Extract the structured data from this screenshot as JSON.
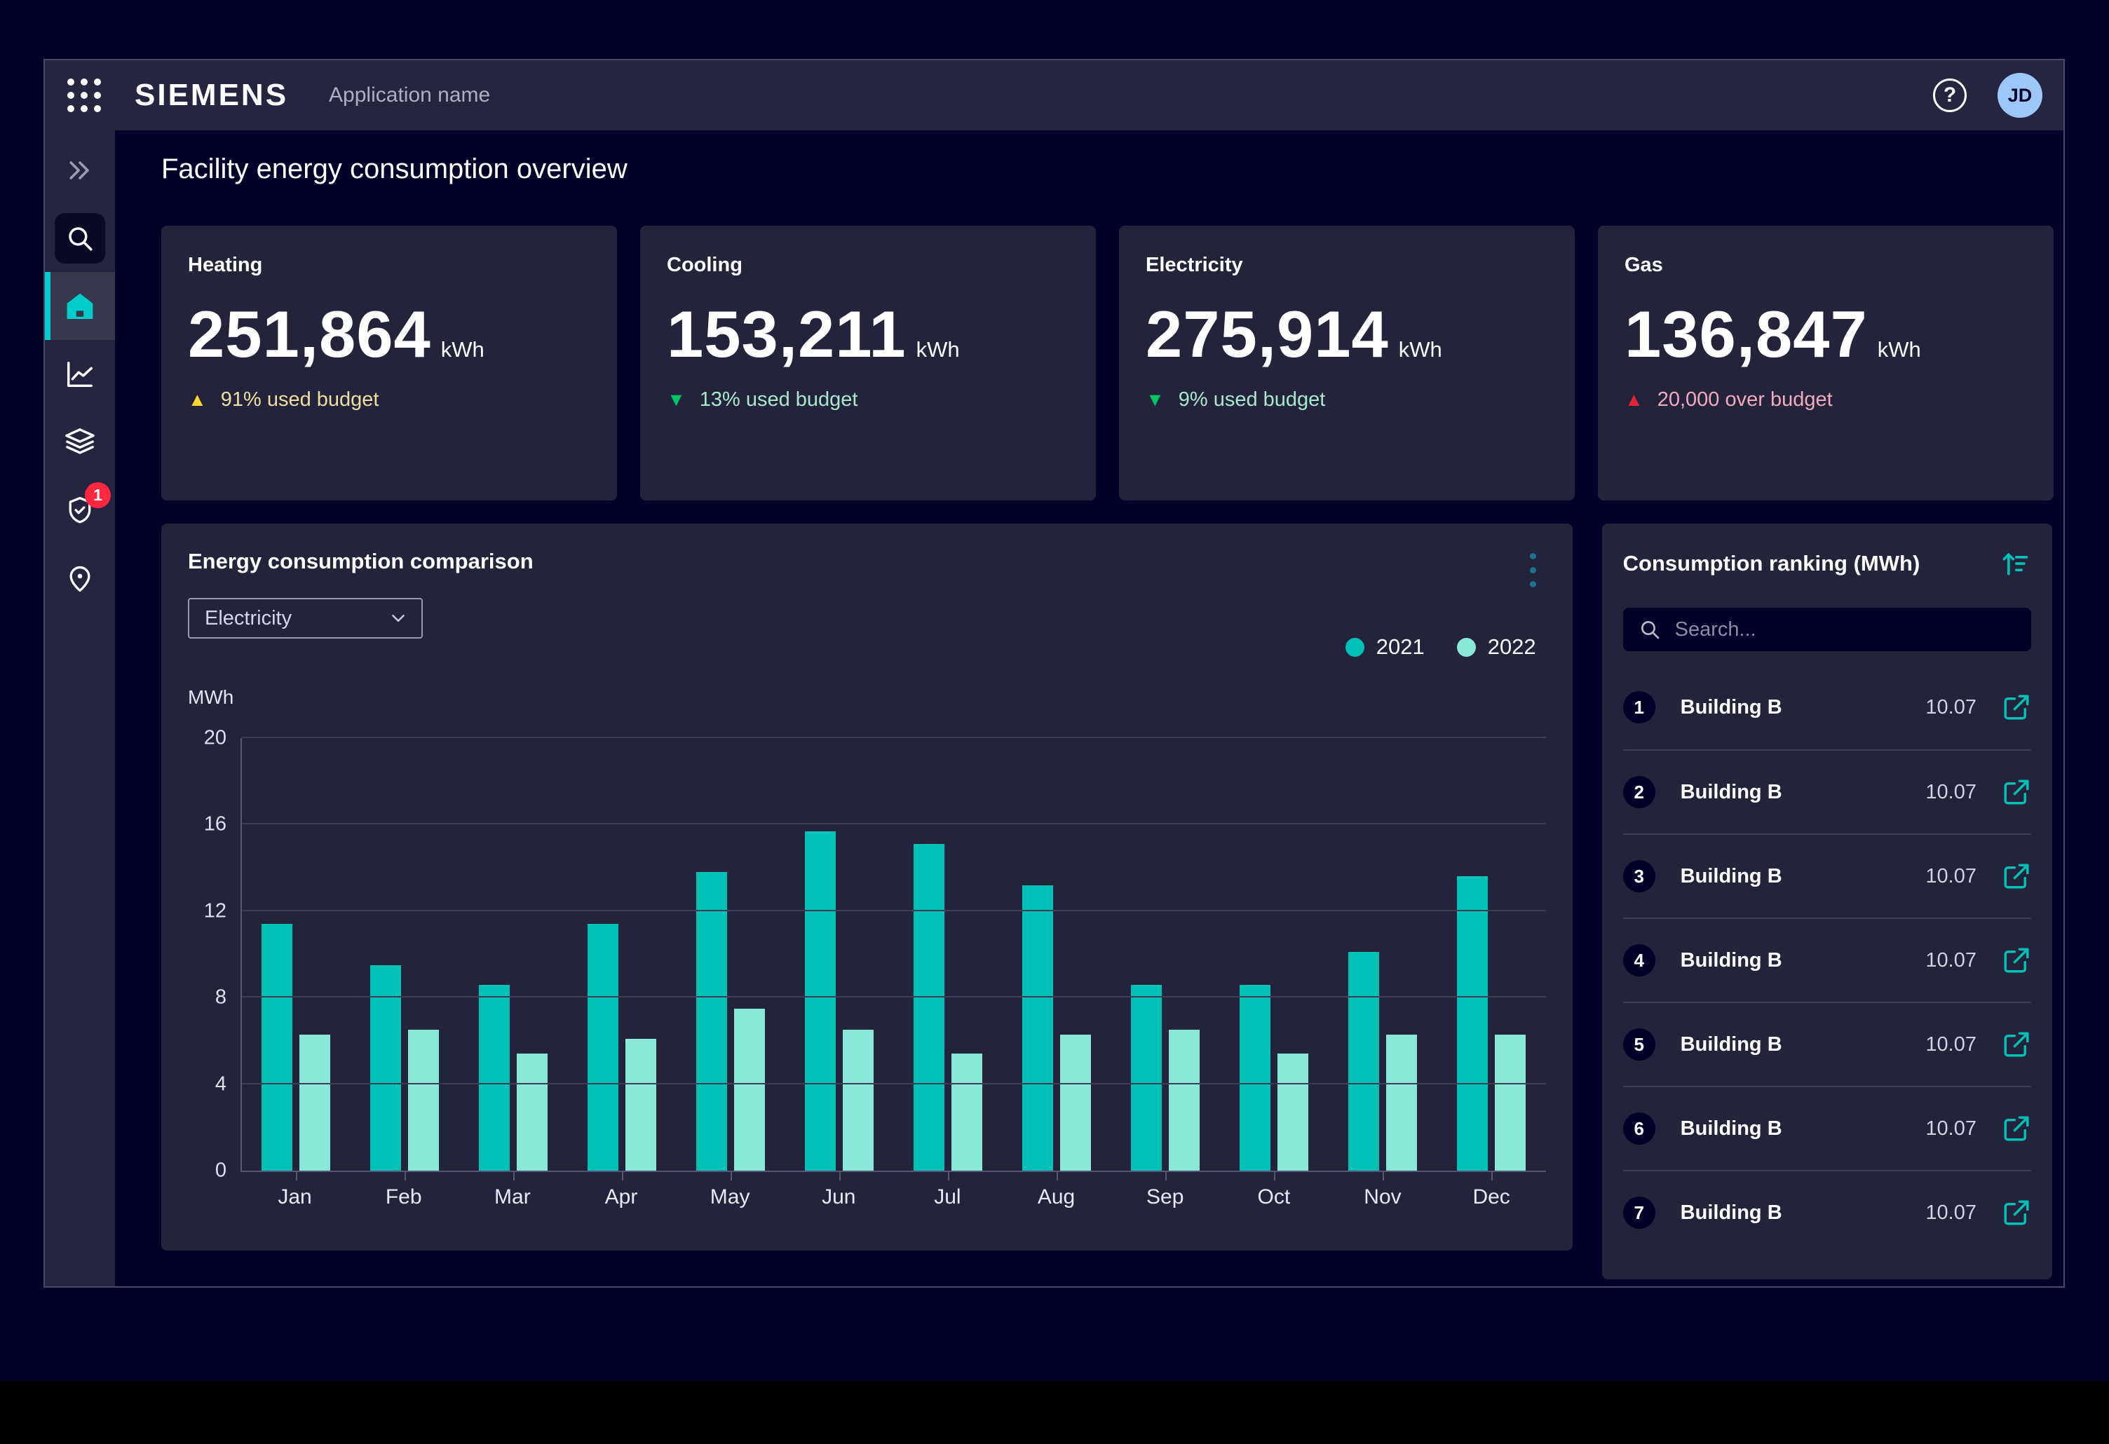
{
  "topbar": {
    "brand": "SIEMENS",
    "app_name": "Application name",
    "avatar_initials": "JD",
    "help_glyph": "?"
  },
  "sidebar": {
    "badge_count": "1",
    "items": [
      "collapse",
      "search",
      "home",
      "analytics",
      "layers",
      "compliance",
      "locations"
    ]
  },
  "page": {
    "title": "Facility energy consumption overview"
  },
  "kpi_cards": [
    {
      "title": "Heating",
      "value": "251,864",
      "unit": "kWh",
      "trend": "warning-up",
      "trend_text": "91% used budget"
    },
    {
      "title": "Cooling",
      "value": "153,211",
      "unit": "kWh",
      "trend": "good-down",
      "trend_text": "13% used budget"
    },
    {
      "title": "Electricity",
      "value": "275,914",
      "unit": "kWh",
      "trend": "good-down",
      "trend_text": "9% used budget"
    },
    {
      "title": "Gas",
      "value": "136,847",
      "unit": "kWh",
      "trend": "alert-up",
      "trend_text": "20,000 over budget"
    }
  ],
  "chart_panel": {
    "title": "Energy consumption comparison",
    "dropdown_value": "Electricity",
    "unit_label": "MWh",
    "chart_data": {
      "type": "bar",
      "title": "Energy consumption comparison",
      "ylabel": "MWh",
      "categories": [
        "Jan",
        "Feb",
        "Mar",
        "Apr",
        "May",
        "Jun",
        "Jul",
        "Aug",
        "Sep",
        "Oct",
        "Nov",
        "Dec"
      ],
      "series": [
        {
          "name": "2021",
          "color": "#00C1B6",
          "values": [
            11.4,
            9.5,
            8.6,
            11.4,
            13.8,
            15.7,
            15.1,
            13.2,
            8.6,
            8.6,
            10.1,
            13.6
          ]
        },
        {
          "name": "2022",
          "color": "#8AE9D6",
          "values": [
            6.3,
            6.5,
            5.4,
            6.1,
            7.5,
            6.5,
            5.4,
            6.3,
            6.5,
            5.4,
            6.3,
            6.3
          ]
        }
      ],
      "ylim": [
        0,
        20
      ],
      "yticks": [
        0,
        4,
        8,
        12,
        16,
        20
      ],
      "grid": true,
      "legend_position": "top-right"
    }
  },
  "ranking_panel": {
    "title": "Consumption ranking (MWh)",
    "search_placeholder": "Search...",
    "rows": [
      {
        "rank": "1",
        "name": "Building B",
        "value": "10.07"
      },
      {
        "rank": "2",
        "name": "Building B",
        "value": "10.07"
      },
      {
        "rank": "3",
        "name": "Building B",
        "value": "10.07"
      },
      {
        "rank": "4",
        "name": "Building B",
        "value": "10.07"
      },
      {
        "rank": "5",
        "name": "Building B",
        "value": "10.07"
      },
      {
        "rank": "6",
        "name": "Building B",
        "value": "10.07"
      },
      {
        "rank": "7",
        "name": "Building B",
        "value": "10.07"
      }
    ]
  },
  "colors": {
    "desktop_bg": "#000028",
    "panel_bg": "#23233C",
    "bar_bg": "#252541",
    "accent_teal": "#00C1B6",
    "sidebar_accent": "#00CCCC",
    "series_2021": "#00C1B6",
    "series_2022": "#8AE9D6",
    "warning_yellow": "#FFD732",
    "success_green": "#00C364",
    "alert_red": "#E5233D",
    "badge_red": "#FF2640",
    "avatar_blue": "#9DC7F8"
  }
}
